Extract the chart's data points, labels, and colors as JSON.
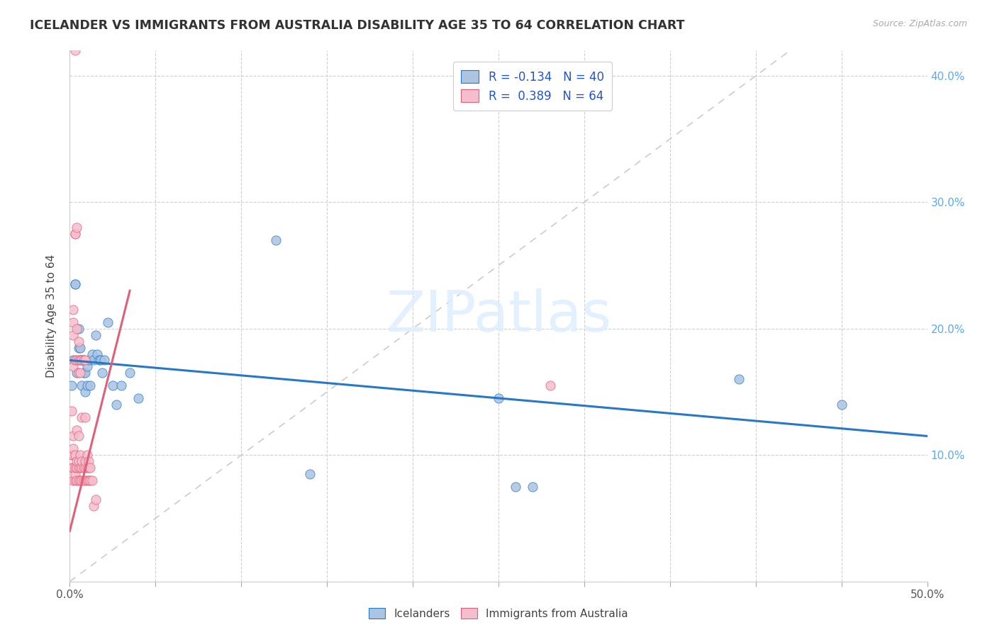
{
  "title": "ICELANDER VS IMMIGRANTS FROM AUSTRALIA DISABILITY AGE 35 TO 64 CORRELATION CHART",
  "source": "Source: ZipAtlas.com",
  "ylabel": "Disability Age 35 to 64",
  "xlim": [
    0.0,
    0.5
  ],
  "ylim": [
    0.0,
    0.42
  ],
  "x_ticks": [
    0.0,
    0.05,
    0.1,
    0.15,
    0.2,
    0.25,
    0.3,
    0.35,
    0.4,
    0.45,
    0.5
  ],
  "y_ticks": [
    0.0,
    0.1,
    0.2,
    0.3,
    0.4
  ],
  "x_tick_labels_show": [
    0.0,
    0.5
  ],
  "blue_R": -0.134,
  "blue_N": 40,
  "pink_R": 0.389,
  "pink_N": 64,
  "blue_color": "#aac4e2",
  "pink_color": "#f5bece",
  "blue_line_color": "#2878c8",
  "pink_line_color": "#e0607a",
  "diagonal_color": "#cccccc",
  "watermark_text": "ZIPatlas",
  "legend_label_color": "#2255cc",
  "blue_trend": [
    0.0,
    0.175,
    0.5,
    0.115
  ],
  "pink_trend": [
    0.0,
    0.04,
    0.035,
    0.23
  ],
  "diagonal": [
    0.0,
    0.0,
    0.42,
    0.42
  ],
  "blue_points": [
    [
      0.001,
      0.155
    ],
    [
      0.002,
      0.175
    ],
    [
      0.003,
      0.235
    ],
    [
      0.003,
      0.235
    ],
    [
      0.004,
      0.165
    ],
    [
      0.005,
      0.185
    ],
    [
      0.005,
      0.2
    ],
    [
      0.006,
      0.175
    ],
    [
      0.006,
      0.185
    ],
    [
      0.007,
      0.175
    ],
    [
      0.007,
      0.155
    ],
    [
      0.008,
      0.165
    ],
    [
      0.008,
      0.175
    ],
    [
      0.009,
      0.15
    ],
    [
      0.009,
      0.165
    ],
    [
      0.01,
      0.17
    ],
    [
      0.01,
      0.155
    ],
    [
      0.011,
      0.175
    ],
    [
      0.012,
      0.155
    ],
    [
      0.013,
      0.18
    ],
    [
      0.014,
      0.175
    ],
    [
      0.015,
      0.195
    ],
    [
      0.016,
      0.18
    ],
    [
      0.017,
      0.175
    ],
    [
      0.018,
      0.175
    ],
    [
      0.019,
      0.165
    ],
    [
      0.02,
      0.175
    ],
    [
      0.022,
      0.205
    ],
    [
      0.025,
      0.155
    ],
    [
      0.027,
      0.14
    ],
    [
      0.03,
      0.155
    ],
    [
      0.035,
      0.165
    ],
    [
      0.04,
      0.145
    ],
    [
      0.12,
      0.27
    ],
    [
      0.14,
      0.085
    ],
    [
      0.25,
      0.145
    ],
    [
      0.26,
      0.075
    ],
    [
      0.27,
      0.075
    ],
    [
      0.39,
      0.16
    ],
    [
      0.45,
      0.14
    ]
  ],
  "pink_points": [
    [
      0.001,
      0.135
    ],
    [
      0.001,
      0.1
    ],
    [
      0.001,
      0.09
    ],
    [
      0.002,
      0.08
    ],
    [
      0.002,
      0.09
    ],
    [
      0.002,
      0.1
    ],
    [
      0.002,
      0.105
    ],
    [
      0.002,
      0.115
    ],
    [
      0.002,
      0.17
    ],
    [
      0.002,
      0.195
    ],
    [
      0.002,
      0.205
    ],
    [
      0.002,
      0.215
    ],
    [
      0.003,
      0.08
    ],
    [
      0.003,
      0.085
    ],
    [
      0.003,
      0.09
    ],
    [
      0.003,
      0.1
    ],
    [
      0.003,
      0.175
    ],
    [
      0.003,
      0.275
    ],
    [
      0.003,
      0.42
    ],
    [
      0.003,
      0.275
    ],
    [
      0.004,
      0.08
    ],
    [
      0.004,
      0.09
    ],
    [
      0.004,
      0.095
    ],
    [
      0.004,
      0.12
    ],
    [
      0.004,
      0.175
    ],
    [
      0.004,
      0.2
    ],
    [
      0.004,
      0.28
    ],
    [
      0.005,
      0.08
    ],
    [
      0.005,
      0.09
    ],
    [
      0.005,
      0.095
    ],
    [
      0.005,
      0.115
    ],
    [
      0.005,
      0.165
    ],
    [
      0.005,
      0.175
    ],
    [
      0.005,
      0.19
    ],
    [
      0.006,
      0.08
    ],
    [
      0.006,
      0.09
    ],
    [
      0.006,
      0.1
    ],
    [
      0.006,
      0.165
    ],
    [
      0.006,
      0.175
    ],
    [
      0.007,
      0.08
    ],
    [
      0.007,
      0.09
    ],
    [
      0.007,
      0.095
    ],
    [
      0.007,
      0.13
    ],
    [
      0.007,
      0.175
    ],
    [
      0.008,
      0.08
    ],
    [
      0.008,
      0.09
    ],
    [
      0.008,
      0.175
    ],
    [
      0.009,
      0.08
    ],
    [
      0.009,
      0.09
    ],
    [
      0.009,
      0.095
    ],
    [
      0.009,
      0.13
    ],
    [
      0.009,
      0.175
    ],
    [
      0.01,
      0.08
    ],
    [
      0.01,
      0.09
    ],
    [
      0.01,
      0.1
    ],
    [
      0.011,
      0.08
    ],
    [
      0.011,
      0.09
    ],
    [
      0.011,
      0.095
    ],
    [
      0.012,
      0.08
    ],
    [
      0.012,
      0.09
    ],
    [
      0.013,
      0.08
    ],
    [
      0.014,
      0.06
    ],
    [
      0.015,
      0.065
    ],
    [
      0.28,
      0.155
    ]
  ]
}
